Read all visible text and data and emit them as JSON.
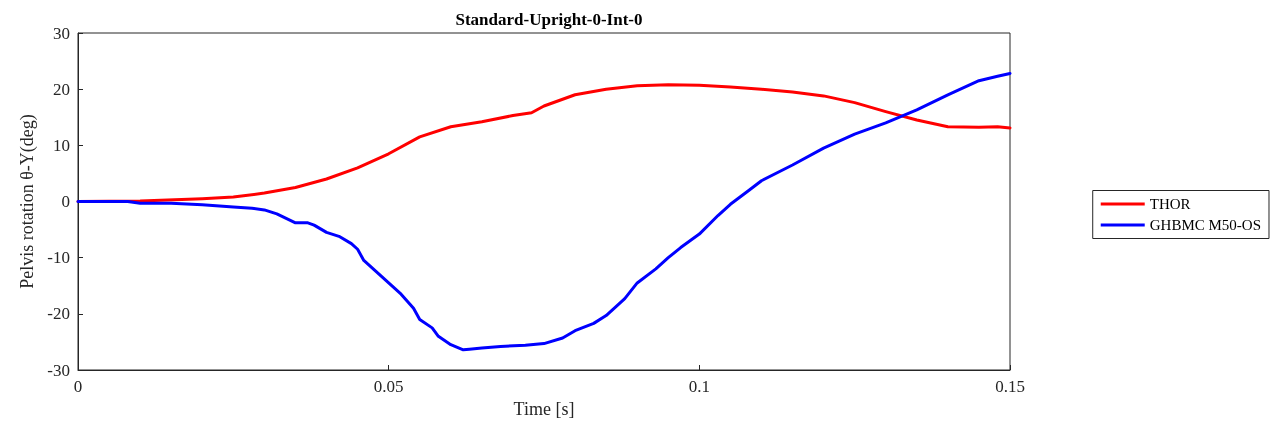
{
  "chart_data": {
    "type": "line",
    "title": "Standard-Upright-0-Int-0",
    "xlabel": "Time [s]",
    "ylabel": "Pelvis rotation θ-Y(deg)",
    "xlim": [
      0,
      0.15
    ],
    "xticks": [
      0,
      0.05,
      0.1,
      0.15
    ],
    "ylim": [
      -30,
      30
    ],
    "yticks": [
      -30,
      -20,
      -10,
      0,
      10,
      20,
      30
    ],
    "grid": false,
    "legend": "right",
    "marker": "none",
    "line_style": "solid",
    "series": [
      {
        "name": "THOR",
        "color": "#ff0000",
        "x": [
          0,
          0.01,
          0.02,
          0.025,
          0.03,
          0.035,
          0.04,
          0.045,
          0.05,
          0.055,
          0.06,
          0.065,
          0.07,
          0.073,
          0.075,
          0.08,
          0.085,
          0.09,
          0.095,
          0.1,
          0.105,
          0.11,
          0.115,
          0.12,
          0.125,
          0.13,
          0.135,
          0.14,
          0.145,
          0.148,
          0.15
        ],
        "values": [
          0,
          0.1,
          0.5,
          0.8,
          1.5,
          2.5,
          4,
          6,
          8.5,
          11.5,
          13.3,
          14.2,
          15.3,
          15.8,
          17,
          19,
          20,
          20.6,
          20.8,
          20.7,
          20.4,
          20,
          19.5,
          18.8,
          17.6,
          16,
          14.5,
          13.3,
          13.2,
          13.3,
          13.1
        ]
      },
      {
        "name": "GHBMC M50-OS",
        "color": "#0000ff",
        "x": [
          0,
          0.008,
          0.01,
          0.015,
          0.02,
          0.025,
          0.028,
          0.03,
          0.032,
          0.035,
          0.037,
          0.038,
          0.04,
          0.042,
          0.044,
          0.045,
          0.046,
          0.048,
          0.05,
          0.052,
          0.054,
          0.055,
          0.057,
          0.058,
          0.06,
          0.062,
          0.063,
          0.065,
          0.068,
          0.072,
          0.075,
          0.078,
          0.08,
          0.083,
          0.085,
          0.088,
          0.09,
          0.093,
          0.095,
          0.097,
          0.1,
          0.103,
          0.105,
          0.108,
          0.11,
          0.115,
          0.12,
          0.125,
          0.13,
          0.135,
          0.14,
          0.145,
          0.148,
          0.15
        ],
        "values": [
          0,
          0,
          -0.3,
          -0.3,
          -0.6,
          -1,
          -1.2,
          -1.5,
          -2.2,
          -3.8,
          -3.8,
          -4.2,
          -5.5,
          -6.2,
          -7.5,
          -8.5,
          -10.5,
          -12.5,
          -14.5,
          -16.5,
          -19,
          -21,
          -22.5,
          -24,
          -25.5,
          -26.4,
          -26.3,
          -26.1,
          -25.8,
          -25.6,
          -25.3,
          -24.3,
          -23,
          -21.7,
          -20.3,
          -17.3,
          -14.5,
          -12,
          -10,
          -8.2,
          -5.8,
          -2.5,
          -0.5,
          2,
          3.7,
          6.5,
          9.5,
          12,
          14,
          16.3,
          19,
          21.5,
          22.3,
          22.8
        ]
      }
    ]
  }
}
